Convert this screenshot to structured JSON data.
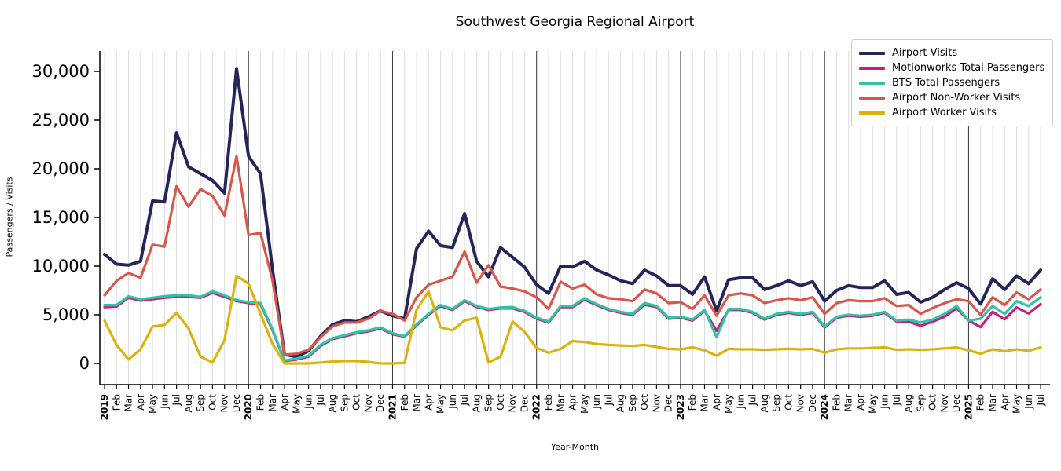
{
  "chart_data": {
    "type": "line",
    "title": "Southwest Georgia Regional Airport",
    "xlabel": "Year-Month",
    "ylabel": "Passengers / Visits",
    "legend_position": "upper right",
    "grid": "vertical-monthly",
    "ylim": [
      -2200,
      32400
    ],
    "ytick_values": [
      0,
      5000,
      10000,
      15000,
      20000,
      25000,
      30000
    ],
    "ytick_labels": [
      "0",
      "5,000",
      "10,000",
      "15,000",
      "20,000",
      "25,000",
      "30,000"
    ],
    "x_labels": [
      "2019",
      "Feb",
      "Mar",
      "Apr",
      "May",
      "Jun",
      "Jul",
      "Aug",
      "Sep",
      "Oct",
      "Nov",
      "Dec",
      "2020",
      "Feb",
      "Mar",
      "Apr",
      "May",
      "Jun",
      "Jul",
      "Aug",
      "Sep",
      "Oct",
      "Nov",
      "Dec",
      "2021",
      "Feb",
      "Mar",
      "Apr",
      "May",
      "Jun",
      "Jul",
      "Aug",
      "Sep",
      "Oct",
      "Nov",
      "Dec",
      "2022",
      "Feb",
      "Mar",
      "Apr",
      "May",
      "Jun",
      "Jul",
      "Aug",
      "Sep",
      "Oct",
      "Nov",
      "Dec",
      "2023",
      "Feb",
      "Mar",
      "Apr",
      "May",
      "Jun",
      "Jul",
      "Aug",
      "Sep",
      "Oct",
      "Nov",
      "Dec",
      "2024",
      "Feb",
      "Mar",
      "Apr",
      "May",
      "Jun",
      "Jul",
      "Aug",
      "Sep",
      "Oct",
      "Nov",
      "Dec",
      "2025",
      "Feb",
      "Mar",
      "Apr",
      "May",
      "Jun",
      "Jul"
    ],
    "year_indices": [
      0,
      12,
      24,
      36,
      48,
      60,
      72
    ],
    "series": [
      {
        "name": "Airport Visits",
        "color": "#24265a",
        "linewidth": 4,
        "values": [
          11200,
          10200,
          10100,
          10500,
          16700,
          16600,
          23700,
          20200,
          19500,
          18800,
          17500,
          30300,
          21300,
          19500,
          9600,
          900,
          700,
          1300,
          2800,
          4000,
          4400,
          4300,
          4800,
          5400,
          4900,
          4600,
          11800,
          13600,
          12100,
          11900,
          15400,
          10500,
          8900,
          11900,
          10900,
          9900,
          8100,
          7200,
          10000,
          9900,
          10500,
          9600,
          9100,
          8500,
          8200,
          9600,
          9000,
          8000,
          8000,
          7100,
          8900,
          5400,
          8600,
          8800,
          8800,
          7600,
          8000,
          8500,
          8000,
          8400,
          6400,
          7500,
          8000,
          7800,
          7800,
          8500,
          7100,
          7300,
          6300,
          6800,
          7600,
          8300,
          7700,
          6100,
          8700,
          7600,
          9000,
          8200,
          9600
        ]
      },
      {
        "name": "Motionworks Total Passengers",
        "color": "#c32182",
        "linewidth": 3.2,
        "values": [
          5800,
          5850,
          6750,
          6450,
          6600,
          6750,
          6850,
          6850,
          6750,
          7250,
          6850,
          6400,
          6200,
          6100,
          3400,
          250,
          400,
          700,
          1800,
          2500,
          2800,
          3100,
          3300,
          3600,
          3000,
          2750,
          3900,
          5000,
          5900,
          5500,
          6400,
          5800,
          5500,
          5650,
          5650,
          5300,
          4600,
          4200,
          5800,
          5800,
          6550,
          6000,
          5500,
          5200,
          5000,
          6050,
          5800,
          4600,
          4700,
          4400,
          5400,
          3350,
          5500,
          5500,
          5200,
          4500,
          5000,
          5200,
          5000,
          5200,
          3700,
          4700,
          4900,
          4800,
          4900,
          5200,
          4300,
          4280,
          3870,
          4280,
          4800,
          5670,
          4400,
          3740,
          5300,
          4540,
          5750,
          5140,
          6100
        ]
      },
      {
        "name": "BTS Total Passengers",
        "color": "#2ec4a4",
        "linewidth": 3.2,
        "values": [
          6000,
          6000,
          6900,
          6600,
          6750,
          6900,
          7000,
          7000,
          6850,
          7400,
          7000,
          6500,
          6300,
          6200,
          3500,
          300,
          500,
          800,
          1900,
          2600,
          2900,
          3200,
          3400,
          3700,
          3100,
          2800,
          4000,
          5100,
          6000,
          5600,
          6500,
          5900,
          5600,
          5750,
          5800,
          5400,
          4700,
          4300,
          5900,
          5900,
          6700,
          6100,
          5600,
          5300,
          5100,
          6200,
          5900,
          4700,
          4800,
          4500,
          5500,
          2700,
          5600,
          5600,
          5300,
          4600,
          5100,
          5300,
          5100,
          5300,
          3800,
          4800,
          5000,
          4900,
          5000,
          5300,
          4400,
          4500,
          4200,
          4500,
          5100,
          5900,
          4400,
          4600,
          5900,
          5100,
          6400,
          5900,
          6800
        ]
      },
      {
        "name": "Airport Non-Worker Visits",
        "color": "#d9564c",
        "linewidth": 3.2,
        "values": [
          7000,
          8500,
          9300,
          8800,
          12200,
          12000,
          18200,
          16100,
          17900,
          17200,
          15200,
          21300,
          13200,
          13400,
          8500,
          900,
          1000,
          1400,
          2700,
          3800,
          4200,
          4200,
          4600,
          5400,
          5100,
          4400,
          6800,
          8100,
          8500,
          8900,
          11500,
          8300,
          10100,
          7900,
          7700,
          7400,
          6800,
          5600,
          8400,
          7700,
          8100,
          7100,
          6700,
          6600,
          6400,
          7600,
          7200,
          6200,
          6300,
          5600,
          7000,
          4900,
          7000,
          7200,
          7000,
          6200,
          6500,
          6700,
          6500,
          6800,
          5100,
          6200,
          6500,
          6400,
          6400,
          6700,
          5900,
          6000,
          5100,
          5700,
          6200,
          6600,
          6400,
          5000,
          6800,
          6000,
          7300,
          6600,
          7600
        ]
      },
      {
        "name": "Airport Worker Visits",
        "color": "#dcb30c",
        "linewidth": 3.2,
        "values": [
          4400,
          1900,
          400,
          1450,
          3800,
          3950,
          5200,
          3600,
          700,
          100,
          2400,
          9000,
          8200,
          5100,
          2000,
          0,
          0,
          0,
          100,
          200,
          250,
          250,
          150,
          0,
          0,
          50,
          5500,
          7400,
          3700,
          3400,
          4400,
          4700,
          100,
          700,
          4300,
          3250,
          1600,
          1100,
          1500,
          2300,
          2200,
          2000,
          1900,
          1850,
          1800,
          1900,
          1700,
          1500,
          1450,
          1650,
          1350,
          800,
          1500,
          1450,
          1450,
          1400,
          1450,
          1500,
          1450,
          1500,
          1100,
          1450,
          1550,
          1550,
          1600,
          1650,
          1400,
          1450,
          1400,
          1450,
          1550,
          1650,
          1350,
          1000,
          1450,
          1250,
          1450,
          1300,
          1650
        ]
      }
    ]
  }
}
